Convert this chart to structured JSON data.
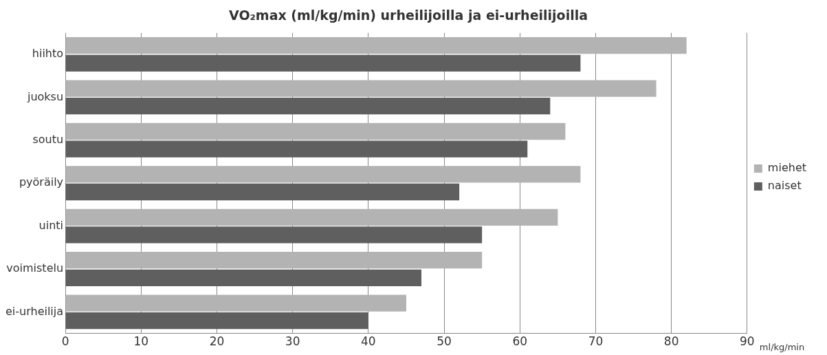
{
  "chart_data": {
    "type": "bar",
    "orientation": "horizontal",
    "title": "VO₂max (ml/kg/min) urheilijoilla ja ei-urheilijoilla",
    "xlabel": "ml/kg/min",
    "categories": [
      "hiihto",
      "juoksu",
      "soutu",
      "pyöräily",
      "uinti",
      "voimistelu",
      "ei-urheilija"
    ],
    "series": [
      {
        "name": "miehet",
        "color": "#b3b3b3",
        "values": [
          82,
          78,
          66,
          68,
          65,
          55,
          45
        ]
      },
      {
        "name": "naiset",
        "color": "#5f5f5f",
        "values": [
          68,
          64,
          61,
          52,
          55,
          47,
          40
        ]
      }
    ],
    "xlim": [
      0,
      90
    ],
    "xticks": [
      0,
      10,
      20,
      30,
      40,
      50,
      60,
      70,
      80,
      90
    ],
    "grid": "x",
    "legend": "right"
  }
}
